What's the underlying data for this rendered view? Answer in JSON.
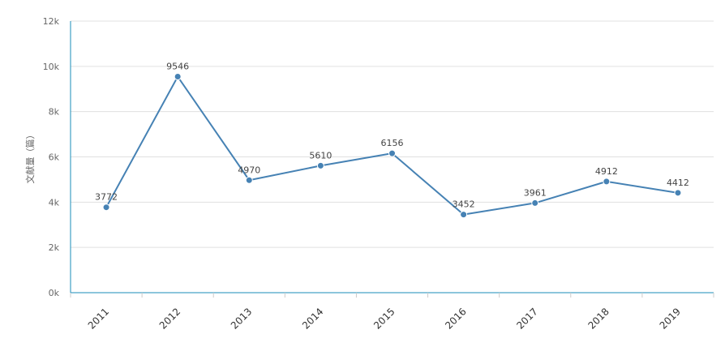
{
  "chart_data": {
    "type": "line",
    "categories": [
      "2011",
      "2012",
      "2013",
      "2014",
      "2015",
      "2016",
      "2017",
      "2018",
      "2019"
    ],
    "values": [
      3772,
      9546,
      4970,
      5610,
      6156,
      3452,
      3961,
      4912,
      4412
    ],
    "data_labels": [
      "3772",
      "9546",
      "4970",
      "5610",
      "6156",
      "3452",
      "3961",
      "4912",
      "4412"
    ],
    "ylabel": "文献量（篇）",
    "ylim": [
      0,
      12000
    ],
    "y_ticks": [
      0,
      2000,
      4000,
      6000,
      8000,
      10000,
      12000
    ],
    "y_tick_labels": [
      "0k",
      "2k",
      "4k",
      "6k",
      "8k",
      "10k",
      "12k"
    ],
    "grid": true,
    "legend": "none",
    "colors": {
      "line": "#4682b4",
      "axis": "#1a8cba",
      "grid": "#e0e0e0"
    }
  }
}
